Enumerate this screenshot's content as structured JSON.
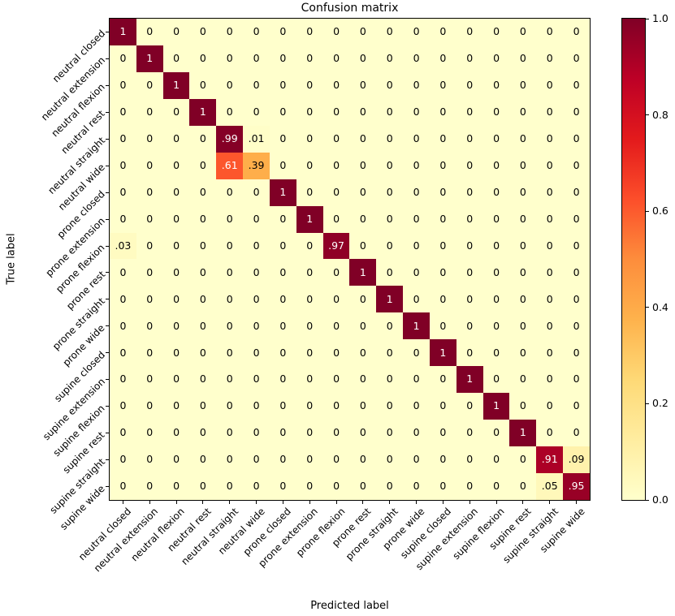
{
  "chart_data": {
    "type": "heatmap",
    "title": "Confusion matrix",
    "xlabel": "Predicted label",
    "ylabel": "True label",
    "labels": [
      "neutral closed",
      "neutral extension",
      "neutral flexion",
      "neutral rest",
      "neutral straight",
      "neutral wide",
      "prone closed",
      "prone extension",
      "prone flexion",
      "prone rest",
      "prone straight",
      "prone wide",
      "supine closed",
      "supine extension",
      "supine flexion",
      "supine rest",
      "supine straight",
      "supine wide"
    ],
    "matrix": [
      [
        1,
        0,
        0,
        0,
        0,
        0,
        0,
        0,
        0,
        0,
        0,
        0,
        0,
        0,
        0,
        0,
        0,
        0
      ],
      [
        0,
        1,
        0,
        0,
        0,
        0,
        0,
        0,
        0,
        0,
        0,
        0,
        0,
        0,
        0,
        0,
        0,
        0
      ],
      [
        0,
        0,
        1,
        0,
        0,
        0,
        0,
        0,
        0,
        0,
        0,
        0,
        0,
        0,
        0,
        0,
        0,
        0
      ],
      [
        0,
        0,
        0,
        1,
        0,
        0,
        0,
        0,
        0,
        0,
        0,
        0,
        0,
        0,
        0,
        0,
        0,
        0
      ],
      [
        0,
        0,
        0,
        0,
        0.99,
        0.01,
        0,
        0,
        0,
        0,
        0,
        0,
        0,
        0,
        0,
        0,
        0,
        0
      ],
      [
        0,
        0,
        0,
        0,
        0.61,
        0.39,
        0,
        0,
        0,
        0,
        0,
        0,
        0,
        0,
        0,
        0,
        0,
        0
      ],
      [
        0,
        0,
        0,
        0,
        0,
        0,
        1,
        0,
        0,
        0,
        0,
        0,
        0,
        0,
        0,
        0,
        0,
        0
      ],
      [
        0,
        0,
        0,
        0,
        0,
        0,
        0,
        1,
        0,
        0,
        0,
        0,
        0,
        0,
        0,
        0,
        0,
        0
      ],
      [
        0.03,
        0,
        0,
        0,
        0,
        0,
        0,
        0,
        0.97,
        0,
        0,
        0,
        0,
        0,
        0,
        0,
        0,
        0
      ],
      [
        0,
        0,
        0,
        0,
        0,
        0,
        0,
        0,
        0,
        1,
        0,
        0,
        0,
        0,
        0,
        0,
        0,
        0
      ],
      [
        0,
        0,
        0,
        0,
        0,
        0,
        0,
        0,
        0,
        0,
        1,
        0,
        0,
        0,
        0,
        0,
        0,
        0
      ],
      [
        0,
        0,
        0,
        0,
        0,
        0,
        0,
        0,
        0,
        0,
        0,
        1,
        0,
        0,
        0,
        0,
        0,
        0
      ],
      [
        0,
        0,
        0,
        0,
        0,
        0,
        0,
        0,
        0,
        0,
        0,
        0,
        1,
        0,
        0,
        0,
        0,
        0
      ],
      [
        0,
        0,
        0,
        0,
        0,
        0,
        0,
        0,
        0,
        0,
        0,
        0,
        0,
        1,
        0,
        0,
        0,
        0
      ],
      [
        0,
        0,
        0,
        0,
        0,
        0,
        0,
        0,
        0,
        0,
        0,
        0,
        0,
        0,
        1,
        0,
        0,
        0
      ],
      [
        0,
        0,
        0,
        0,
        0,
        0,
        0,
        0,
        0,
        0,
        0,
        0,
        0,
        0,
        0,
        1,
        0,
        0
      ],
      [
        0,
        0,
        0,
        0,
        0,
        0,
        0,
        0,
        0,
        0,
        0,
        0,
        0,
        0,
        0,
        0,
        0.91,
        0.09
      ],
      [
        0,
        0,
        0,
        0,
        0,
        0,
        0,
        0,
        0,
        0,
        0,
        0,
        0,
        0,
        0,
        0,
        0.05,
        0.95
      ]
    ],
    "vmin": 0,
    "vmax": 1,
    "colormap": {
      "name": "YlOrRd",
      "stops": [
        "#ffffcc",
        "#ffeda0",
        "#fed976",
        "#feb24c",
        "#fd8d3c",
        "#fc4e2a",
        "#e31a1c",
        "#bd0026",
        "#800026"
      ]
    },
    "value_text_threshold": 0.5,
    "cell_text_color_low": "#000000",
    "cell_text_color_high": "#ffffff",
    "colorbar_ticks": [
      {
        "label": "1.0",
        "value": 1.0
      },
      {
        "label": "0.8",
        "value": 0.8
      },
      {
        "label": "0.6",
        "value": 0.6
      },
      {
        "label": "0.4",
        "value": 0.4
      },
      {
        "label": "0.2",
        "value": 0.2
      },
      {
        "label": "0.0",
        "value": 0.0
      }
    ],
    "legend_position": "right-colorbar",
    "grid": false
  }
}
